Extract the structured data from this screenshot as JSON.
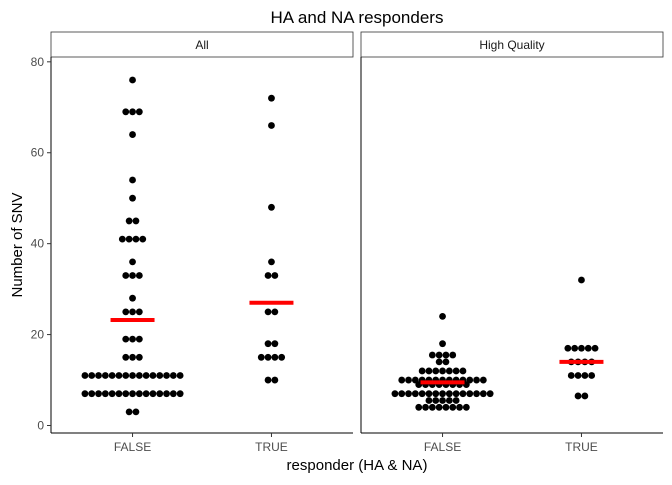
{
  "chart_data": {
    "type": "scatter",
    "title": "HA and NA responders",
    "xlabel": "responder (HA & NA)",
    "ylabel": "Number of SNV",
    "categories": [
      "FALSE",
      "TRUE"
    ],
    "ylim": [
      -1,
      81
    ],
    "yticks": [
      0,
      20,
      40,
      60,
      80
    ],
    "grid": false,
    "colors": {
      "points": "#000000",
      "mean_bar": "#ff0000",
      "strip_fill": "#ffffff",
      "strip_border": "#333333"
    },
    "panels": [
      {
        "name": "All",
        "series": [
          {
            "category": "FALSE",
            "mean": 23.2,
            "values": [
              76,
              69,
              69,
              69,
              64,
              54,
              50,
              45,
              45,
              41,
              41,
              41,
              41,
              36,
              33,
              33,
              33,
              28,
              25,
              25,
              25,
              19,
              19,
              19,
              15,
              15,
              15,
              11,
              11,
              11,
              11,
              11,
              11,
              11,
              11,
              11,
              11,
              11,
              11,
              11,
              11,
              11,
              7,
              7,
              7,
              7,
              7,
              7,
              7,
              7,
              7,
              7,
              7,
              7,
              7,
              7,
              7,
              3,
              3
            ]
          },
          {
            "category": "TRUE",
            "mean": 27,
            "values": [
              72,
              66,
              48,
              36,
              33,
              33,
              25,
              25,
              18,
              18,
              15,
              15,
              15,
              15,
              10,
              10
            ]
          }
        ]
      },
      {
        "name": "High Quality",
        "series": [
          {
            "category": "FALSE",
            "mean": 9.5,
            "values": [
              24,
              18,
              15.5,
              15.5,
              15.5,
              15.5,
              14,
              14,
              12,
              12,
              12,
              12,
              12,
              12,
              12,
              10,
              10,
              10,
              10,
              10,
              10,
              10,
              10,
              10,
              10,
              10,
              10,
              10,
              9,
              9,
              9,
              9,
              9,
              9,
              9,
              9,
              7,
              7,
              7,
              7,
              7,
              7,
              7,
              7,
              7,
              7,
              7,
              7,
              7,
              7,
              7,
              5.5,
              5.5,
              5.5,
              5.5,
              5.5,
              4,
              4,
              4,
              4,
              4,
              4,
              4,
              4
            ]
          },
          {
            "category": "TRUE",
            "mean": 14,
            "values": [
              32,
              17,
              17,
              17,
              17,
              17,
              14,
              14,
              14,
              14,
              11,
              11,
              11,
              11,
              6.5,
              6.5
            ]
          }
        ]
      }
    ]
  }
}
